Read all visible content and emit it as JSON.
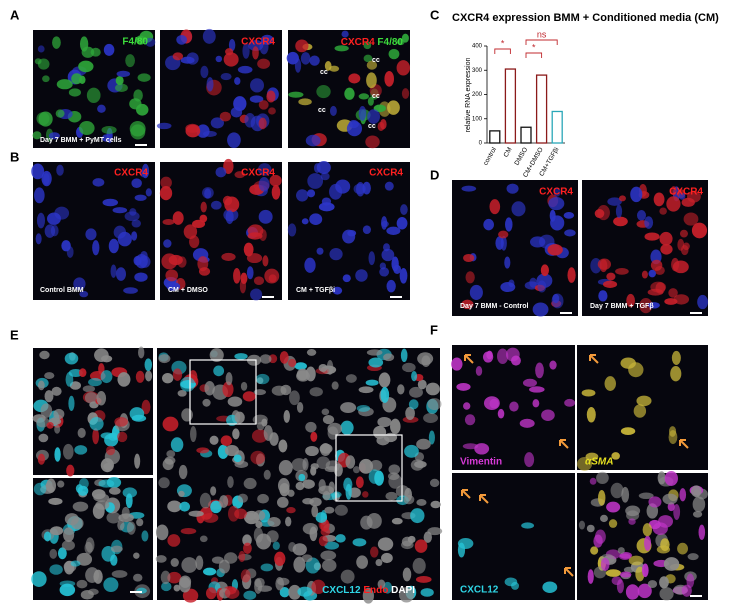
{
  "panel_letters": [
    "A",
    "B",
    "C",
    "D",
    "E",
    "F"
  ],
  "panel_a": {
    "labels": [
      "F4/80",
      "CXCR4",
      "CXCR4",
      "F4/80"
    ],
    "cc": [
      "cc",
      "cc",
      "cc",
      "cc",
      "cc"
    ],
    "caption": "Day 7 BMM + PyMT cells"
  },
  "panel_b": {
    "labels": [
      "CXCR4",
      "CXCR4",
      "CXCR4"
    ],
    "captions": [
      "Control BMM",
      "CM + DMSO",
      "CM + TGFβi"
    ]
  },
  "panel_d": {
    "labels": [
      "CXCR4",
      "CXCR4"
    ],
    "captions": [
      "Day 7 BMM - Control",
      "Day 7 BMM + TGFβ"
    ]
  },
  "panel_e": {
    "legend": [
      "CXCL12",
      "Endo",
      "DAPI"
    ]
  },
  "panel_f": {
    "labels": [
      "Vimentin",
      "αSMA",
      "CXCL12"
    ]
  },
  "chart_data": {
    "type": "bar",
    "title": "CXCR4 expression BMM + Conditioned media (CM)",
    "y_label": "relative RNA expression",
    "categories": [
      "control",
      "CM",
      "DMSO",
      "CM+DMSO",
      "CM+TGFβi"
    ],
    "values": [
      50,
      305,
      65,
      280,
      130
    ],
    "colors": [
      "#111111",
      "#8b1a1a",
      "#111111",
      "#8b1a1a",
      "#2aa7b8"
    ],
    "ylim": [
      0,
      400
    ],
    "yticks": [
      0,
      100,
      200,
      300,
      400
    ],
    "annotations": [
      "*",
      "*",
      "ns"
    ]
  }
}
